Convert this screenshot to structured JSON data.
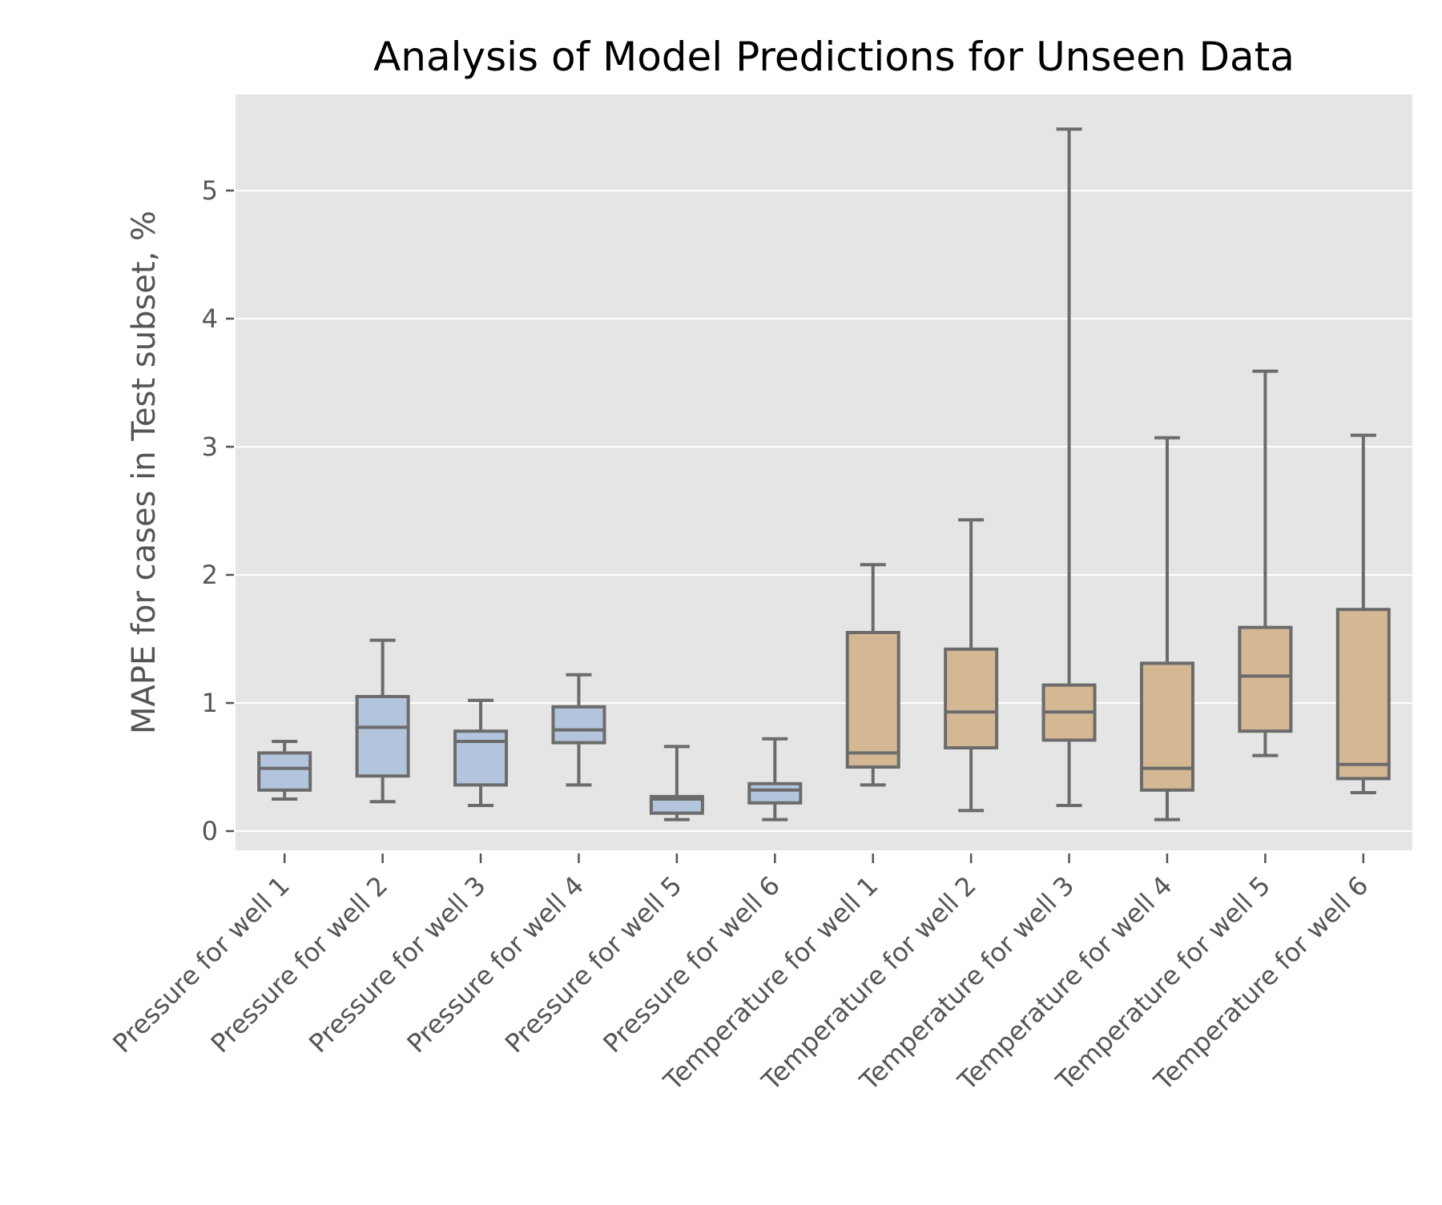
{
  "chart_data": {
    "type": "box",
    "title": "Analysis of Model Predictions for Unseen Data",
    "xlabel": "",
    "ylabel": "MAPE for cases in Test subset, %",
    "ylim": [
      -0.15,
      5.75
    ],
    "yticks": [
      0,
      1,
      2,
      3,
      4,
      5
    ],
    "grid": true,
    "categories": [
      "Pressure for well 1",
      "Pressure for well 2",
      "Pressure for well 3",
      "Pressure for well 4",
      "Pressure for well 5",
      "Pressure for well 6",
      "Temperature for well 1",
      "Temperature for well 2",
      "Temperature for well 3",
      "Temperature for well 4",
      "Temperature for well 5",
      "Temperature for well 6"
    ],
    "boxes": [
      {
        "whisker_low": 0.25,
        "q1": 0.32,
        "median": 0.49,
        "q3": 0.61,
        "whisker_high": 0.7,
        "group": "Pressure"
      },
      {
        "whisker_low": 0.23,
        "q1": 0.43,
        "median": 0.81,
        "q3": 1.05,
        "whisker_high": 1.49,
        "group": "Pressure"
      },
      {
        "whisker_low": 0.2,
        "q1": 0.36,
        "median": 0.7,
        "q3": 0.78,
        "whisker_high": 1.02,
        "group": "Pressure"
      },
      {
        "whisker_low": 0.36,
        "q1": 0.69,
        "median": 0.79,
        "q3": 0.97,
        "whisker_high": 1.22,
        "group": "Pressure"
      },
      {
        "whisker_low": 0.09,
        "q1": 0.14,
        "median": 0.25,
        "q3": 0.27,
        "whisker_high": 0.66,
        "group": "Pressure"
      },
      {
        "whisker_low": 0.09,
        "q1": 0.22,
        "median": 0.32,
        "q3": 0.37,
        "whisker_high": 0.72,
        "group": "Pressure"
      },
      {
        "whisker_low": 0.36,
        "q1": 0.5,
        "median": 0.61,
        "q3": 1.55,
        "whisker_high": 2.08,
        "group": "Temperature"
      },
      {
        "whisker_low": 0.16,
        "q1": 0.65,
        "median": 0.93,
        "q3": 1.42,
        "whisker_high": 2.43,
        "group": "Temperature"
      },
      {
        "whisker_low": 0.2,
        "q1": 0.71,
        "median": 0.93,
        "q3": 1.14,
        "whisker_high": 5.48,
        "group": "Temperature"
      },
      {
        "whisker_low": 0.09,
        "q1": 0.32,
        "median": 0.49,
        "q3": 1.31,
        "whisker_high": 3.07,
        "group": "Temperature"
      },
      {
        "whisker_low": 0.59,
        "q1": 0.78,
        "median": 1.21,
        "q3": 1.59,
        "whisker_high": 3.59,
        "group": "Temperature"
      },
      {
        "whisker_low": 0.3,
        "q1": 0.41,
        "median": 0.52,
        "q3": 1.73,
        "whisker_high": 3.09,
        "group": "Temperature"
      }
    ],
    "colors": {
      "background": "#e5e5e5",
      "grid": "#ffffff",
      "box_edge": "#6b6b6b",
      "Pressure": "#b3c5dc",
      "Temperature": "#d4b894",
      "tick": "#555555"
    }
  }
}
